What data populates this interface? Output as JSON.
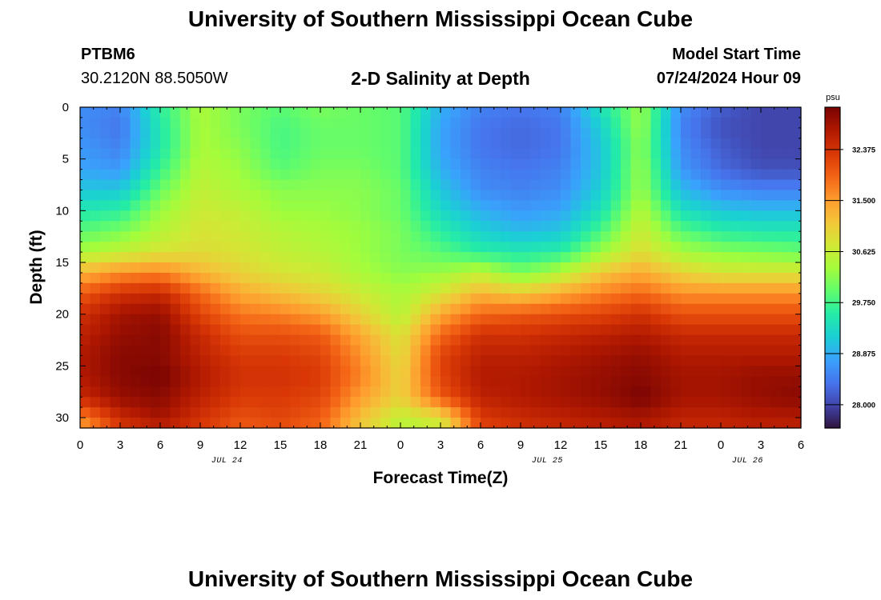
{
  "page": {
    "title_top": "University of Southern Mississippi Ocean Cube",
    "title_bottom": "University of Southern Mississippi Ocean Cube",
    "station": "PTBM6",
    "coords": "30.2120N  88.5050W",
    "subtitle": "2-D Salinity at Depth",
    "model_start_label": "Model Start Time",
    "model_start_value": "07/24/2024 Hour 09"
  },
  "chart_data": {
    "type": "heatmap",
    "title": "2-D Salinity at Depth",
    "xlabel": "Forecast Time(Z)",
    "ylabel": "Depth (ft)",
    "x_tick_labels": [
      "0",
      "3",
      "6",
      "9",
      "12",
      "15",
      "18",
      "21",
      "0",
      "3",
      "6",
      "9",
      "12",
      "15",
      "18",
      "21",
      "0",
      "3",
      "6"
    ],
    "x_date_labels": [
      {
        "text": "JUL 24",
        "hour": 11
      },
      {
        "text": "JUL 25",
        "hour": 35
      },
      {
        "text": "JUL 26",
        "hour": 50
      }
    ],
    "x_range_hours": [
      0,
      54
    ],
    "y_range_ft": [
      0,
      31
    ],
    "y_ticks": [
      0,
      5,
      10,
      15,
      20,
      25,
      30
    ],
    "colorbar": {
      "unit": "psu",
      "range": [
        27.6,
        33.1
      ],
      "tick_values": [
        28.0,
        28.875,
        29.75,
        30.625,
        31.5,
        32.375
      ],
      "tick_labels": [
        "28.000",
        "28.875",
        "29.750",
        "30.625",
        "31.500",
        "32.375"
      ],
      "colormap": [
        "#30123b",
        "#4145ab",
        "#4675ed",
        "#39a2fc",
        "#1bcfd4",
        "#24eca6",
        "#61fc6c",
        "#a4fc3b",
        "#d1e834",
        "#f3c63a",
        "#fe9b2d",
        "#f36315",
        "#d93806",
        "#b11901",
        "#7a0402"
      ]
    },
    "x_hours": [
      0,
      3,
      6,
      9,
      12,
      15,
      18,
      21,
      24,
      27,
      30,
      33,
      36,
      39,
      42,
      45,
      48,
      51,
      54
    ],
    "depth_ft": [
      0,
      2,
      4,
      6,
      8,
      10,
      12,
      14,
      16,
      18,
      20,
      22,
      24,
      26,
      28,
      30,
      31
    ],
    "salinity_psu": [
      [
        28.6,
        28.5,
        29.6,
        30.4,
        30.1,
        29.9,
        30.1,
        30.0,
        29.9,
        28.9,
        28.5,
        28.4,
        28.5,
        29.4,
        30.3,
        28.6,
        28.2,
        28.0,
        28.0
      ],
      [
        28.6,
        28.4,
        29.5,
        30.4,
        30.1,
        29.8,
        30.0,
        30.0,
        29.9,
        28.8,
        28.4,
        28.3,
        28.4,
        29.2,
        30.3,
        28.5,
        28.1,
        28.0,
        28.0
      ],
      [
        28.7,
        28.5,
        29.5,
        30.4,
        30.2,
        29.8,
        30.0,
        30.0,
        29.9,
        28.8,
        28.4,
        28.3,
        28.4,
        29.1,
        30.2,
        28.6,
        28.2,
        28.0,
        28.0
      ],
      [
        28.8,
        28.7,
        29.7,
        30.5,
        30.3,
        29.9,
        30.1,
        30.1,
        29.9,
        28.9,
        28.5,
        28.4,
        28.5,
        29.1,
        30.3,
        28.7,
        28.3,
        28.1,
        28.1
      ],
      [
        29.1,
        29.1,
        30.0,
        30.6,
        30.4,
        30.2,
        30.2,
        30.2,
        30.0,
        29.1,
        28.6,
        28.5,
        28.6,
        29.2,
        30.3,
        29.0,
        28.6,
        28.5,
        28.5
      ],
      [
        29.5,
        29.6,
        30.3,
        30.7,
        30.6,
        30.3,
        30.3,
        30.2,
        30.0,
        29.3,
        28.9,
        28.7,
        28.8,
        29.4,
        30.5,
        29.4,
        29.1,
        29.0,
        29.0
      ],
      [
        29.9,
        30.1,
        30.5,
        30.8,
        30.7,
        30.5,
        30.4,
        30.3,
        30.1,
        29.6,
        29.2,
        29.0,
        29.1,
        29.8,
        30.7,
        29.9,
        29.6,
        29.5,
        29.5
      ],
      [
        30.4,
        30.6,
        30.8,
        30.9,
        30.8,
        30.6,
        30.5,
        30.3,
        30.1,
        29.9,
        29.6,
        29.5,
        29.6,
        30.3,
        30.9,
        30.4,
        30.2,
        30.1,
        30.0
      ],
      [
        31.3,
        31.6,
        31.7,
        31.3,
        31.0,
        30.8,
        30.7,
        30.4,
        30.2,
        30.3,
        30.6,
        30.1,
        30.5,
        31.1,
        31.4,
        31.0,
        30.8,
        30.8,
        30.8
      ],
      [
        32.0,
        32.4,
        32.5,
        31.9,
        31.4,
        31.2,
        31.0,
        30.7,
        30.4,
        30.8,
        31.3,
        31.1,
        31.4,
        31.7,
        31.9,
        31.6,
        31.6,
        31.6,
        31.6
      ],
      [
        32.4,
        32.8,
        32.9,
        32.2,
        31.8,
        31.7,
        31.5,
        31.0,
        30.5,
        31.4,
        31.9,
        32.0,
        32.1,
        32.2,
        32.4,
        32.1,
        32.1,
        32.1,
        32.1
      ],
      [
        32.6,
        32.9,
        33.0,
        32.5,
        32.1,
        32.1,
        32.0,
        31.4,
        30.8,
        31.9,
        32.4,
        32.4,
        32.5,
        32.6,
        32.7,
        32.5,
        32.5,
        32.5,
        32.5
      ],
      [
        32.7,
        33.0,
        33.0,
        32.6,
        32.3,
        32.3,
        32.2,
        31.6,
        30.9,
        32.2,
        32.6,
        32.6,
        32.7,
        32.8,
        32.9,
        32.7,
        32.7,
        32.7,
        32.7
      ],
      [
        32.7,
        33.0,
        33.1,
        32.7,
        32.4,
        32.4,
        32.3,
        31.7,
        31.0,
        32.2,
        32.7,
        32.7,
        32.8,
        32.9,
        33.0,
        32.8,
        32.8,
        32.9,
        32.9
      ],
      [
        32.5,
        32.9,
        33.0,
        32.6,
        32.3,
        32.3,
        32.2,
        31.5,
        31.0,
        32.0,
        32.6,
        32.7,
        32.8,
        32.9,
        33.1,
        32.8,
        32.8,
        32.9,
        33.0
      ],
      [
        31.7,
        32.5,
        32.8,
        32.4,
        32.1,
        32.2,
        32.0,
        31.2,
        30.6,
        30.9,
        32.3,
        32.5,
        32.6,
        32.7,
        32.8,
        32.6,
        32.6,
        32.7,
        32.7
      ],
      [
        31.4,
        32.3,
        32.6,
        32.3,
        32.0,
        32.1,
        31.9,
        31.1,
        30.5,
        30.6,
        32.2,
        32.4,
        32.5,
        32.6,
        32.7,
        32.5,
        32.5,
        32.6,
        32.6
      ]
    ]
  }
}
